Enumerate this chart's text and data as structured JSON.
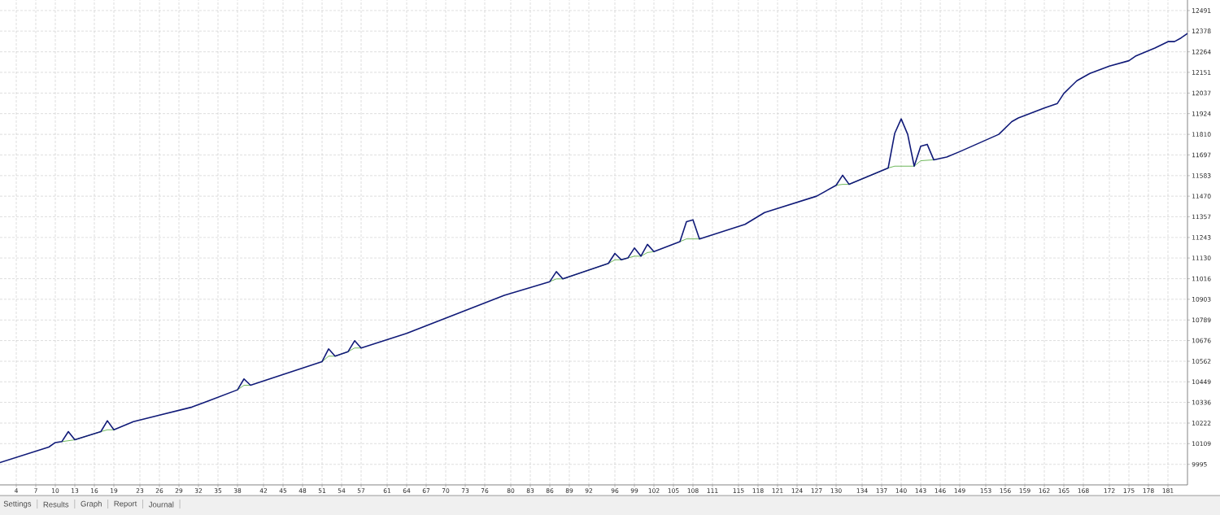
{
  "chart_data": {
    "type": "line",
    "series": [
      {
        "color": "#5fb04a",
        "x": [
          11,
          12,
          13,
          17,
          18,
          19,
          28,
          38,
          39,
          40,
          45,
          51,
          52,
          53,
          55,
          56,
          57,
          70,
          86,
          87,
          88,
          95,
          96,
          97,
          98,
          99,
          100,
          101,
          102,
          104,
          106,
          107,
          109,
          120,
          130,
          131,
          132,
          138,
          139,
          142,
          143,
          145
        ],
        "values": [
          10120,
          10125,
          10130,
          10175,
          10185,
          10185,
          null,
          10405,
          10430,
          10430,
          null,
          10560,
          10590,
          10590,
          10615,
          10635,
          10635,
          null,
          11000,
          11015,
          11015,
          11100,
          11120,
          11120,
          11130,
          11140,
          11140,
          11160,
          11165,
          null,
          11220,
          11235,
          11235,
          null,
          11530,
          11535,
          11535,
          11625,
          11635,
          11635,
          11665,
          11670
        ]
      },
      {
        "color": "#101a78",
        "x": [
          1.5,
          9,
          10,
          11,
          12,
          13,
          17,
          18,
          19,
          22,
          31,
          38,
          39,
          40,
          51,
          52,
          53,
          55,
          56,
          57,
          64,
          79,
          86,
          87,
          88,
          95,
          96,
          97,
          98,
          99,
          100,
          101,
          102,
          106,
          107,
          108,
          109,
          116,
          119,
          127,
          130,
          131,
          132,
          138,
          139,
          140,
          141,
          142,
          143,
          144,
          145,
          147,
          149,
          155,
          157,
          158,
          162,
          164,
          165,
          166,
          167,
          169,
          172,
          175,
          176,
          179,
          181,
          182,
          183,
          184
        ],
        "values": [
          10005,
          10090,
          10115,
          10120,
          10175,
          10130,
          10175,
          10235,
          10185,
          10230,
          10310,
          10405,
          10465,
          10430,
          10560,
          10630,
          10590,
          10615,
          10675,
          10635,
          10715,
          10925,
          11000,
          11055,
          11015,
          11100,
          11155,
          11120,
          11130,
          11185,
          11140,
          11205,
          11165,
          11220,
          11330,
          11340,
          11235,
          11315,
          11380,
          11470,
          11530,
          11585,
          11535,
          11625,
          11815,
          11895,
          11810,
          11635,
          11745,
          11755,
          11670,
          11685,
          11715,
          11810,
          11880,
          11900,
          11955,
          11980,
          12035,
          12070,
          12105,
          12145,
          12185,
          12215,
          12240,
          12285,
          12320,
          12320,
          12340,
          12365
        ]
      }
    ],
    "xlim": [
      1.5,
      184
    ],
    "ylim": [
      9882,
      12549
    ],
    "xticks": [
      4,
      7,
      10,
      13,
      16,
      19,
      23,
      26,
      29,
      32,
      35,
      38,
      42,
      45,
      48,
      51,
      54,
      57,
      61,
      64,
      67,
      70,
      73,
      76,
      80,
      83,
      86,
      89,
      92,
      96,
      99,
      102,
      105,
      108,
      111,
      115,
      118,
      121,
      124,
      127,
      130,
      134,
      137,
      140,
      143,
      146,
      149,
      153,
      156,
      159,
      162,
      165,
      168,
      172,
      175,
      178,
      181
    ],
    "yticks": [
      9995,
      10109,
      10222,
      10336,
      10449,
      10562,
      10676,
      10789,
      10903,
      11016,
      11130,
      11243,
      11357,
      11470,
      11583,
      11697,
      11810,
      11924,
      12037,
      12151,
      12264,
      12378,
      12491
    ],
    "grid": true,
    "annotations": [
      "Settings",
      "Results",
      "Graph",
      "Report",
      "Journal"
    ]
  }
}
